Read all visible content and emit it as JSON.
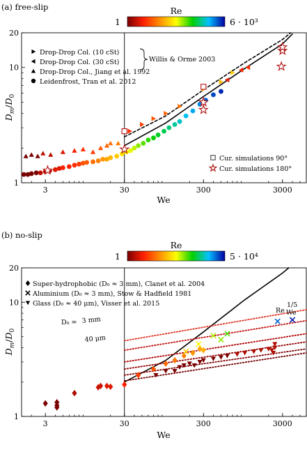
{
  "chart_data": [
    {
      "type": "scatter",
      "panel_label": "(a) free-slip",
      "xlabel": "We",
      "ylabel": "D_m/D_0",
      "xscale": "log",
      "yscale": "log",
      "xlim": [
        1.5,
        6000
      ],
      "ylim": [
        1,
        20
      ],
      "x_ticks": [
        "3",
        "30",
        "300",
        "3000"
      ],
      "y_ticks": [
        "1",
        "10",
        "20"
      ],
      "colorbar": {
        "label": "Re",
        "min_label": "1",
        "max_label": "6 · 10³",
        "min": 1,
        "max": 6000,
        "colors": [
          "#7a0000",
          "#ff2000",
          "#ff9000",
          "#ffff00",
          "#00d000",
          "#00c0ff",
          "#0000a0"
        ]
      },
      "vertical_line_x": 30,
      "legend": [
        {
          "marker": "tri-right",
          "label": "Drop-Drop Col. (10 cSt)"
        },
        {
          "marker": "tri-left",
          "label": "Drop-Drop Col. (30 cSt)"
        },
        {
          "marker": "tri-up",
          "label": "Drop-Drop Col., Jiang et al. 1992"
        },
        {
          "marker": "circle",
          "label": "Leidenfrost, Tran et al. 2012"
        }
      ],
      "brace_label": "Willis & Orme 2003",
      "legend2": [
        {
          "marker": "square",
          "label": "Cur. simulations 90°"
        },
        {
          "marker": "star",
          "label": "Cur. simulations 180°"
        }
      ],
      "series": [
        {
          "marker": "circle",
          "points": [
            [
              1.6,
              1.18
            ],
            [
              1.8,
              1.18
            ],
            [
              2.0,
              1.2
            ],
            [
              2.3,
              1.22
            ],
            [
              2.6,
              1.22
            ],
            [
              3.0,
              1.25
            ],
            [
              3.4,
              1.27
            ],
            [
              4,
              1.3
            ],
            [
              4.5,
              1.33
            ],
            [
              5,
              1.35
            ],
            [
              6,
              1.38
            ],
            [
              7,
              1.42
            ],
            [
              8,
              1.45
            ],
            [
              9,
              1.48
            ],
            [
              10,
              1.5
            ],
            [
              12,
              1.52
            ],
            [
              14,
              1.55
            ],
            [
              16,
              1.6
            ],
            [
              18,
              1.6
            ],
            [
              20,
              1.65
            ],
            [
              24,
              1.7
            ],
            [
              28,
              1.78
            ],
            [
              32,
              1.85
            ],
            [
              36,
              1.9
            ],
            [
              40,
              2.0
            ],
            [
              45,
              2.1
            ],
            [
              52,
              2.2
            ],
            [
              60,
              2.35
            ],
            [
              70,
              2.45
            ],
            [
              80,
              2.6
            ],
            [
              95,
              2.8
            ],
            [
              110,
              3.0
            ],
            [
              130,
              3.2
            ],
            [
              150,
              3.4
            ],
            [
              180,
              3.8
            ],
            [
              220,
              4.2
            ],
            [
              270,
              4.8
            ],
            [
              320,
              5.2
            ],
            [
              400,
              5.8
            ],
            [
              500,
              6.2
            ]
          ],
          "re": [
            1,
            1,
            1,
            1,
            2,
            2,
            2,
            3,
            3,
            4,
            4,
            5,
            6,
            8,
            9,
            12,
            15,
            20,
            25,
            30,
            40,
            55,
            70,
            90,
            110,
            150,
            200,
            260,
            330,
            400,
            500,
            650,
            800,
            1000,
            1300,
            1700,
            2200,
            2800,
            3500,
            4500
          ]
        },
        {
          "marker": "tri-up",
          "points": [
            [
              1.7,
              1.7
            ],
            [
              2.0,
              1.75
            ],
            [
              2.4,
              1.7
            ],
            [
              2.8,
              1.8
            ],
            [
              3.5,
              1.75
            ],
            [
              5,
              1.85
            ],
            [
              7,
              1.9
            ],
            [
              9,
              1.95
            ],
            [
              12,
              1.85
            ],
            [
              15,
              2.0
            ],
            [
              18,
              2.1
            ],
            [
              20,
              2.2
            ],
            [
              25,
              2.2
            ]
          ],
          "re": [
            1,
            1,
            1,
            2,
            2,
            3,
            4,
            5,
            6,
            8,
            10,
            12,
            15
          ]
        },
        {
          "marker": "tri-right",
          "points": [
            [
              35,
              2.8
            ],
            [
              50,
              3.2
            ],
            [
              70,
              3.6
            ],
            [
              100,
              4.0
            ],
            [
              150,
              4.6
            ],
            [
              300,
              6.5
            ],
            [
              500,
              7.5
            ],
            [
              700,
              9.0
            ]
          ],
          "re": [
            5,
            6,
            8,
            10,
            12,
            20,
            30,
            40
          ]
        },
        {
          "marker": "tri-left",
          "points": [
            [
              600,
              7.8
            ],
            [
              900,
              9.5
            ],
            [
              1100,
              10.0
            ]
          ],
          "re": [
            3,
            4,
            5
          ]
        },
        {
          "marker": "square",
          "points": [
            [
              30,
              2.8
            ],
            [
              300,
              6.8
            ]
          ],
          "re": [
            null,
            null
          ]
        },
        {
          "marker": "star",
          "points": [
            [
              3.2,
              1.28
            ],
            [
              30,
              1.95
            ],
            [
              300,
              4.3
            ],
            [
              300,
              5.0
            ],
            [
              2900,
              10.2
            ],
            [
              3000,
              14.0
            ],
            [
              3000,
              15.0
            ]
          ],
          "re": [
            null,
            null,
            null,
            null,
            null,
            null,
            null
          ]
        }
      ],
      "curves": [
        {
          "style": "solid",
          "points": [
            [
              30,
              2.1
            ],
            [
              100,
              3.3
            ],
            [
              300,
              5.6
            ],
            [
              1000,
              9.8
            ],
            [
              3000,
              16
            ],
            [
              4000,
              19.5
            ]
          ]
        },
        {
          "style": "dashed",
          "points": [
            [
              30,
              2.5
            ],
            [
              100,
              3.8
            ],
            [
              300,
              6.4
            ],
            [
              1000,
              11.0
            ],
            [
              3000,
              17.5
            ],
            [
              3800,
              20
            ]
          ]
        }
      ]
    },
    {
      "type": "scatter",
      "panel_label": "(b) no-slip",
      "xlabel": "We",
      "ylabel": "D_m/D_0",
      "xscale": "log",
      "yscale": "log",
      "xlim": [
        1.5,
        6000
      ],
      "ylim": [
        1,
        20
      ],
      "x_ticks": [
        "3",
        "30",
        "300",
        "3000"
      ],
      "y_ticks": [
        "1",
        "10",
        "20"
      ],
      "colorbar": {
        "label": "Re",
        "min_label": "1",
        "max_label": "5 · 10⁴",
        "min": 1,
        "max": 50000,
        "colors": [
          "#7a0000",
          "#ff2000",
          "#ff9000",
          "#ffff00",
          "#00d000",
          "#00c0ff",
          "#0000a0"
        ]
      },
      "vertical_line_x": 30,
      "legend": [
        {
          "marker": "diamond",
          "label": "Super-hydrophobic (D₀ ≈ 3 mm), Clanet et al. 2004"
        },
        {
          "marker": "cross",
          "label": "Aluminium (D₀ ≈ 3 mm), Stow & Hadfield 1981"
        },
        {
          "marker": "tri-down",
          "label": "Glass (D₀ ≈ 40 μm), Visser et al. 2015"
        }
      ],
      "annotations": {
        "d0_label": "D₀ =",
        "d0_3mm": "3 mm",
        "d0_40um": "40 μm",
        "re_scaling_base": "Re",
        "re_scaling_sub": "We",
        "re_scaling_sup": "1/5"
      },
      "series": [
        {
          "marker": "diamond",
          "points": [
            [
              3,
              1.3
            ],
            [
              4.2,
              1.33
            ],
            [
              4.2,
              1.25
            ],
            [
              4.2,
              1.2
            ],
            [
              7,
              1.6
            ],
            [
              14,
              1.8
            ],
            [
              15,
              1.85
            ],
            [
              18,
              1.85
            ],
            [
              20,
              1.82
            ],
            [
              30,
              1.9
            ],
            [
              45,
              2.3
            ],
            [
              70,
              2.6
            ],
            [
              100,
              2.9
            ],
            [
              130,
              3.1
            ],
            [
              170,
              3.4
            ],
            [
              220,
              3.6
            ],
            [
              270,
              3.9
            ],
            [
              300,
              3.8
            ]
          ],
          "re": [
            1,
            1,
            1,
            1,
            2,
            3,
            3,
            4,
            4,
            6,
            10,
            15,
            20,
            25,
            30,
            40,
            50,
            60
          ]
        },
        {
          "marker": "cross",
          "points": [
            [
              180,
              3.7
            ],
            [
              260,
              4.3
            ],
            [
              400,
              5.1
            ],
            [
              500,
              4.7
            ],
            [
              600,
              5.3
            ],
            [
              2600,
              6.8
            ],
            [
              4000,
              7.0
            ]
          ],
          "re": [
            100,
            200,
            400,
            500,
            800,
            20000,
            40000
          ]
        },
        {
          "marker": "tri-down",
          "points": [
            [
              75,
              2.3
            ],
            [
              100,
              2.5
            ],
            [
              130,
              2.5
            ],
            [
              150,
              2.7
            ],
            [
              170,
              2.8
            ],
            [
              200,
              2.9
            ],
            [
              230,
              2.8
            ],
            [
              270,
              3.0
            ],
            [
              300,
              3.1
            ],
            [
              400,
              3.2
            ],
            [
              500,
              3.3
            ],
            [
              600,
              3.4
            ],
            [
              800,
              3.5
            ],
            [
              1000,
              3.6
            ],
            [
              1300,
              3.7
            ],
            [
              1600,
              3.8
            ],
            [
              2000,
              3.9
            ],
            [
              2200,
              3.8
            ],
            [
              2400,
              4.0
            ],
            [
              2400,
              4.3
            ],
            [
              2300,
              3.6
            ]
          ],
          "re": [
            1,
            1,
            1,
            1,
            1,
            1,
            1,
            1,
            1,
            1,
            1,
            1,
            2,
            2,
            2,
            2,
            2,
            2,
            2,
            2,
            2
          ]
        }
      ],
      "curves": [
        {
          "style": "solid",
          "points": [
            [
              30,
              2.0
            ],
            [
              100,
              3.1
            ],
            [
              300,
              5.5
            ],
            [
              1000,
              10.5
            ],
            [
              3000,
              18
            ],
            [
              3600,
              20
            ]
          ]
        },
        {
          "style": "dotted",
          "points": [
            [
              30,
              4.6
            ],
            [
              6000,
              8.6
            ]
          ]
        },
        {
          "style": "dotted",
          "points": [
            [
              30,
              3.8
            ],
            [
              6000,
              6.9
            ]
          ]
        },
        {
          "style": "dotted",
          "points": [
            [
              30,
              3.0
            ],
            [
              6000,
              5.3
            ]
          ]
        },
        {
          "style": "dotted",
          "points": [
            [
              30,
              2.6
            ],
            [
              6000,
              4.5
            ]
          ]
        },
        {
          "style": "dotted",
          "points": [
            [
              30,
              2.3
            ],
            [
              6000,
              3.9
            ]
          ]
        },
        {
          "style": "dotted",
          "points": [
            [
              30,
              2.05
            ],
            [
              6000,
              3.6
            ]
          ]
        }
      ]
    }
  ]
}
